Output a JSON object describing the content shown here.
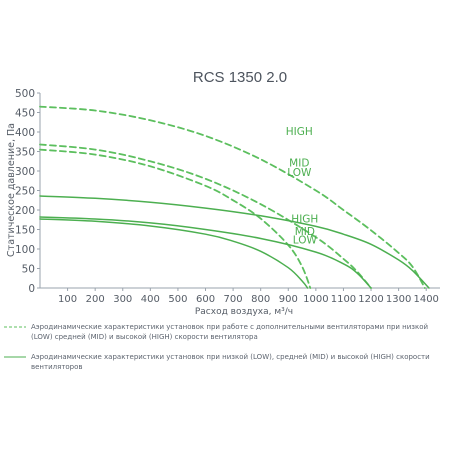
{
  "colors": {
    "curve": "#4caf50",
    "curve_light": "#5cbf5e",
    "axis": "#9aa3ad",
    "text": "#555c66"
  },
  "chart_data": {
    "type": "line",
    "title": "RCS 1350 2.0",
    "xlabel": "Расход воздуха, м³/ч",
    "ylabel": "Статическое давление, Па",
    "xlim": [
      0,
      1450
    ],
    "ylim": [
      0,
      500
    ],
    "xticks": [
      100,
      200,
      300,
      400,
      500,
      600,
      700,
      800,
      900,
      1000,
      1100,
      1200,
      1300,
      1400
    ],
    "yticks": [
      0,
      50,
      100,
      150,
      200,
      250,
      300,
      350,
      400,
      450,
      500
    ],
    "grid": false,
    "series": [
      {
        "name": "HIGH",
        "style": "dashed",
        "label_at": [
          940,
          402
        ],
        "x": [
          0,
          200,
          400,
          600,
          800,
          1000,
          1100,
          1200,
          1300,
          1350,
          1395
        ],
        "y": [
          465,
          455,
          430,
          390,
          330,
          250,
          200,
          148,
          90,
          55,
          0
        ]
      },
      {
        "name": "MID",
        "style": "dashed",
        "label_at": [
          940,
          322
        ],
        "x": [
          0,
          200,
          400,
          600,
          800,
          1000,
          1100,
          1150,
          1200
        ],
        "y": [
          368,
          355,
          325,
          280,
          215,
          130,
          75,
          42,
          0
        ]
      },
      {
        "name": "LOW",
        "style": "dashed",
        "label_at": [
          940,
          297
        ],
        "x": [
          0,
          200,
          400,
          600,
          700,
          800,
          900,
          950,
          980
        ],
        "y": [
          355,
          342,
          312,
          262,
          225,
          178,
          110,
          55,
          0
        ]
      },
      {
        "name": "HIGH",
        "style": "solid",
        "label_at": [
          960,
          178
        ],
        "x": [
          0,
          200,
          400,
          600,
          800,
          1000,
          1100,
          1200,
          1300,
          1350,
          1410
        ],
        "y": [
          236,
          230,
          220,
          205,
          185,
          158,
          138,
          112,
          72,
          45,
          0
        ]
      },
      {
        "name": "MID",
        "style": "solid",
        "label_at": [
          960,
          146
        ],
        "x": [
          0,
          200,
          400,
          600,
          800,
          1000,
          1100,
          1150,
          1200
        ],
        "y": [
          182,
          177,
          167,
          150,
          127,
          92,
          62,
          38,
          0
        ]
      },
      {
        "name": "LOW",
        "style": "solid",
        "label_at": [
          960,
          124
        ],
        "x": [
          0,
          200,
          400,
          600,
          700,
          800,
          900,
          950,
          970
        ],
        "y": [
          177,
          171,
          159,
          138,
          120,
          94,
          52,
          18,
          0
        ]
      }
    ]
  },
  "legend": {
    "dashed_text": "Аэродинамические характеристики установок при работе с дополнительными вентиляторами при низкой (LOW) средней (MID) и высокой (HIGH) скорости вентилятора",
    "solid_text": "Аэродинамические характеристики установок при низкой (LOW), средней (MID) и высокой (HIGH) скорости вентиляторов"
  }
}
